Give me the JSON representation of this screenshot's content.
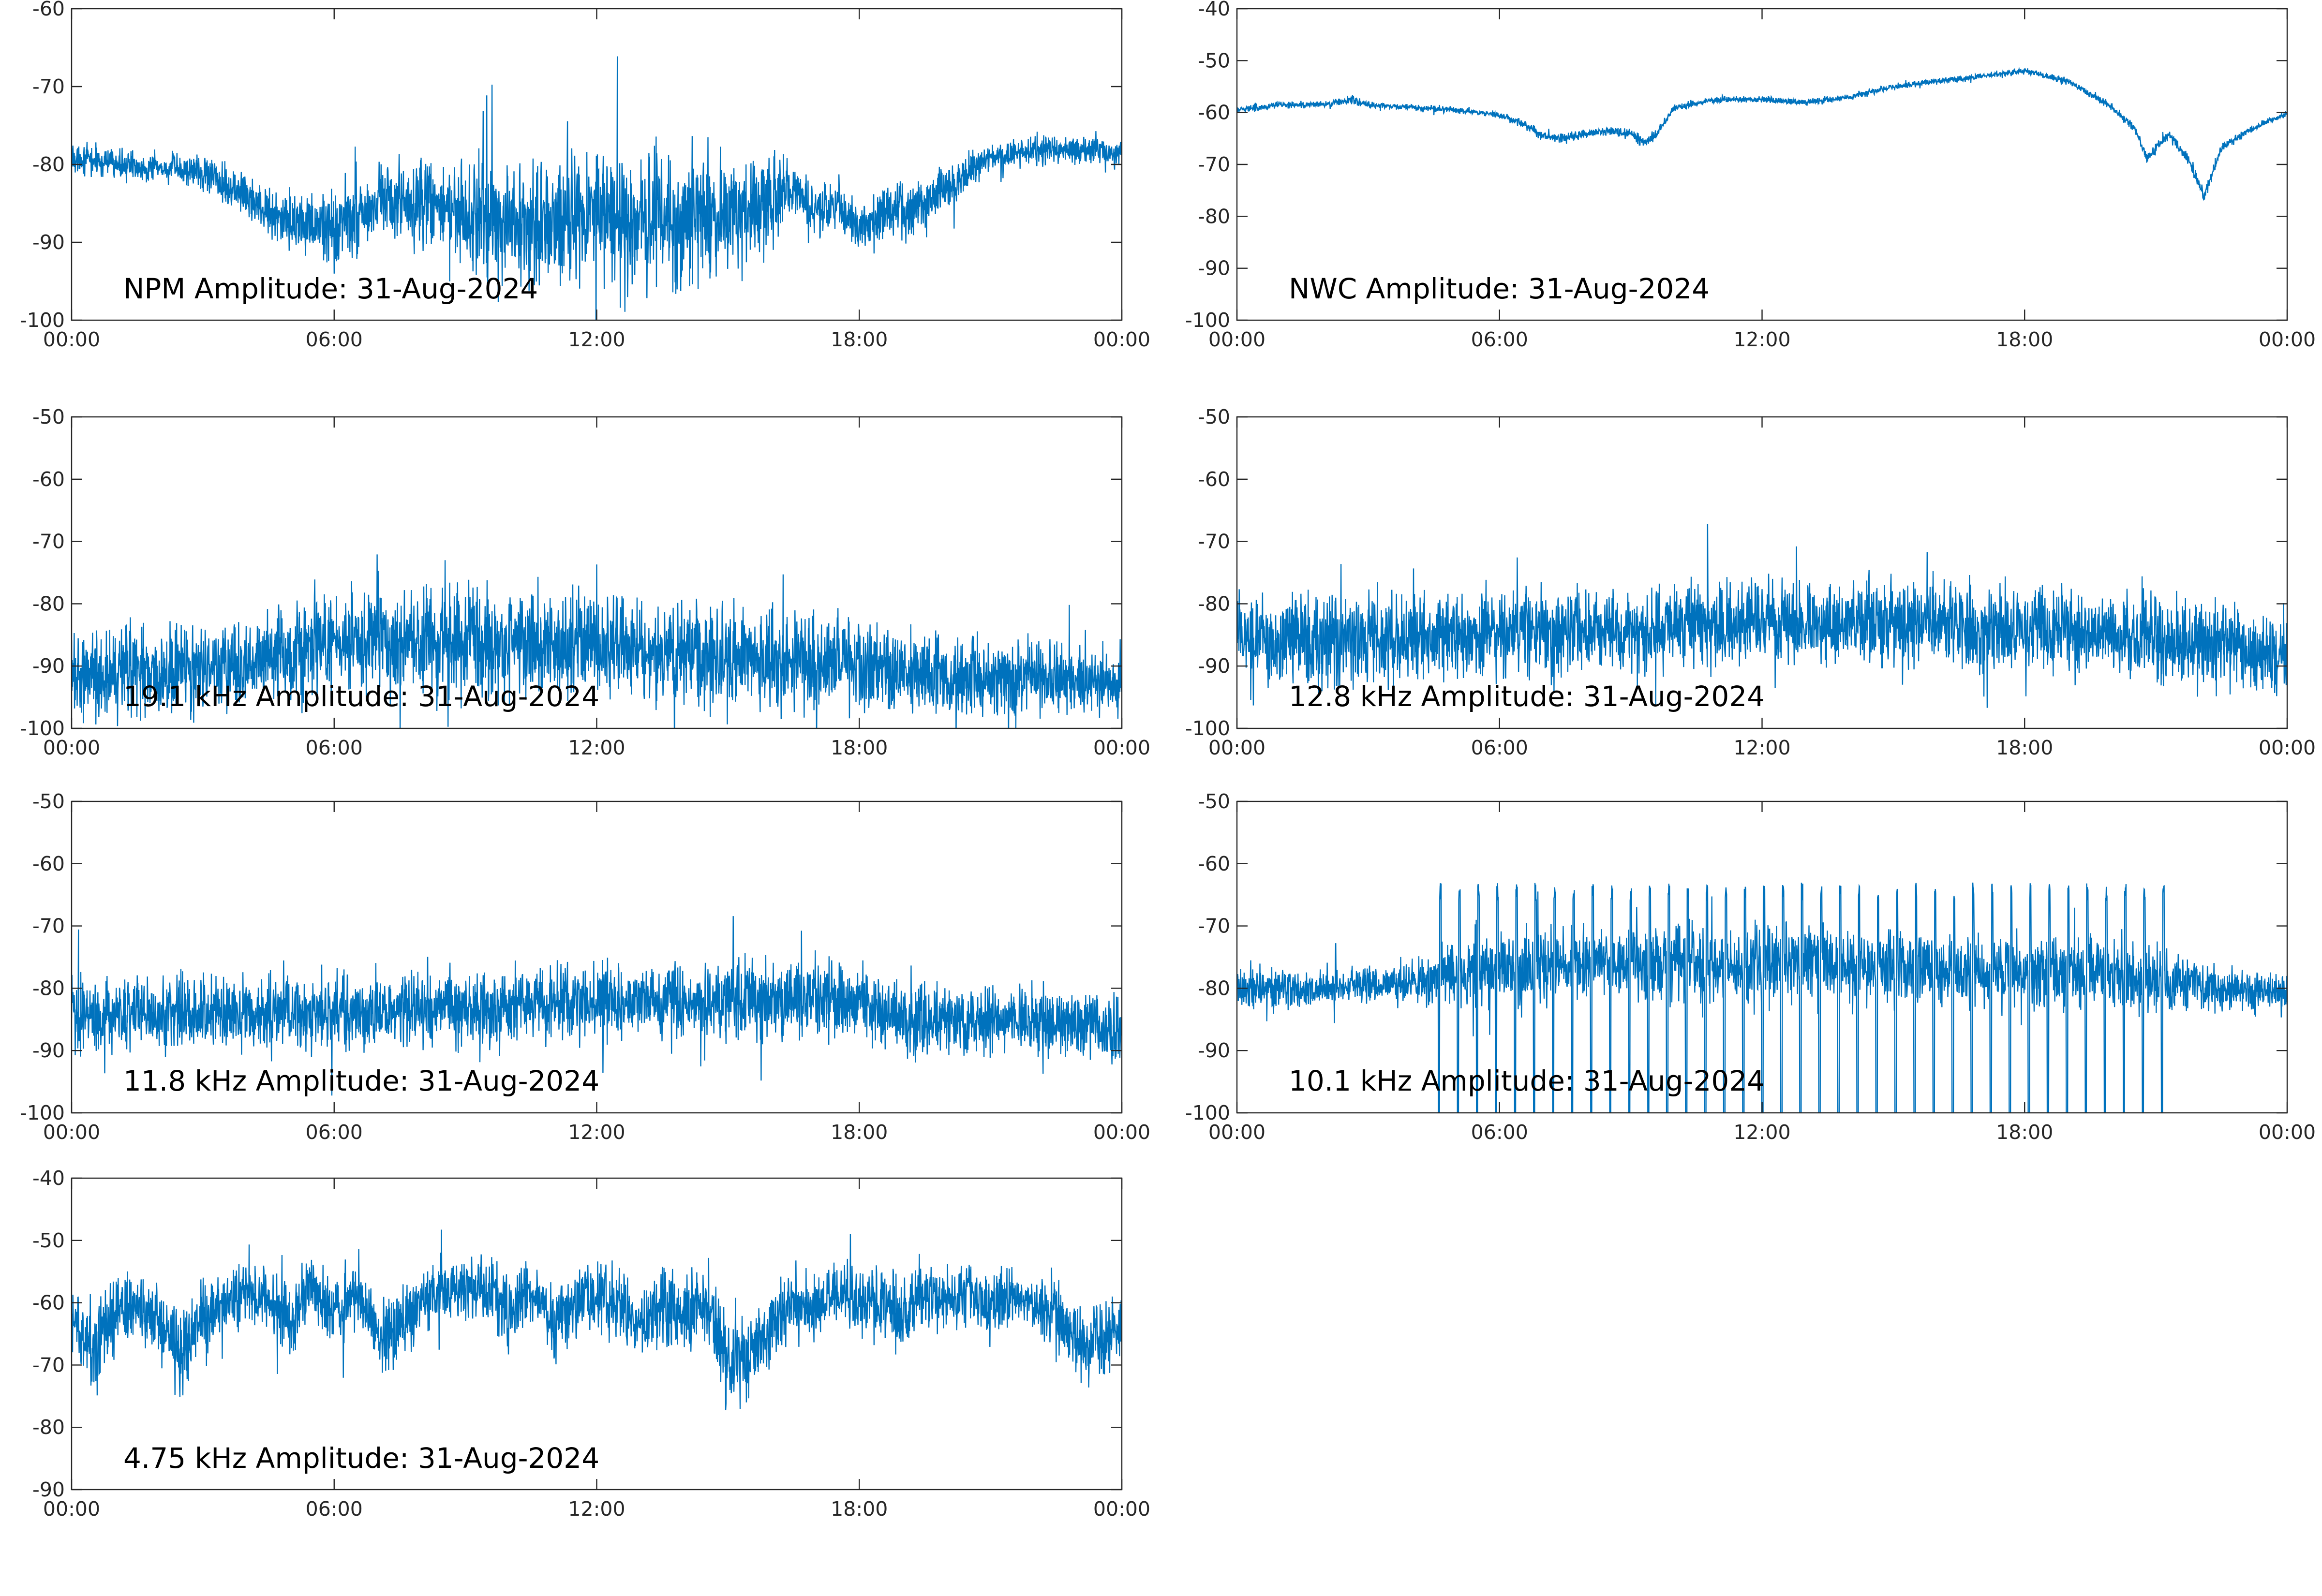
{
  "figure": {
    "trace_color": "#0072BD",
    "axis_color": "#262626"
  },
  "chart_data": [
    {
      "type": "line",
      "label": "NPM Amplitude: 31-Aug-2024",
      "ylim": [
        -100,
        -60
      ],
      "yticks": [
        "-60",
        "-70",
        "-80",
        "-90",
        "-100"
      ],
      "xlim": [
        "00:00",
        "24:00"
      ],
      "xticks": [
        "00:00",
        "06:00",
        "12:00",
        "18:00",
        "00:00"
      ],
      "grid": false,
      "series": [
        {
          "x_hours": [
            0,
            1,
            2,
            3,
            4,
            5,
            6,
            7,
            8,
            9,
            10,
            11,
            12,
            13,
            14,
            15,
            16,
            16.5,
            17,
            17.5,
            18,
            18.5,
            19,
            20,
            21,
            22,
            23,
            24
          ],
          "center": [
            -79,
            -80,
            -80.5,
            -81,
            -84,
            -88,
            -88,
            -85,
            -85,
            -86,
            -88,
            -88,
            -87,
            -87,
            -87,
            -87,
            -85,
            -83,
            -86,
            -85,
            -88,
            -86,
            -86,
            -83,
            -79,
            -78,
            -78,
            -79
          ],
          "spread": [
            1.5,
            1.5,
            1.5,
            2,
            2.5,
            3,
            4,
            4.5,
            4.5,
            5,
            6,
            7,
            7,
            7,
            7,
            6,
            5,
            3,
            2.5,
            3,
            3,
            3,
            3,
            2.5,
            1.5,
            1.5,
            1.5,
            1.5
          ]
        }
      ]
    },
    {
      "type": "line",
      "label": "NWC Amplitude: 31-Aug-2024",
      "ylim": [
        -100,
        -40
      ],
      "yticks": [
        "-40",
        "-50",
        "-60",
        "-70",
        "-80",
        "-90",
        "-100"
      ],
      "xlim": [
        "00:00",
        "24:00"
      ],
      "xticks": [
        "00:00",
        "06:00",
        "12:00",
        "18:00",
        "00:00"
      ],
      "grid": false,
      "series": [
        {
          "x_hours": [
            0,
            1,
            2,
            2.6,
            3,
            4,
            5,
            6,
            6.5,
            7,
            7.5,
            8,
            8.5,
            9,
            9.3,
            9.6,
            10,
            11,
            12,
            13,
            14,
            15,
            16,
            17,
            18,
            19,
            20,
            20.5,
            20.8,
            21.3,
            21.8,
            22.1,
            22.5,
            23,
            24
          ],
          "center": [
            -59.5,
            -58.5,
            -58.5,
            -57.5,
            -58.5,
            -59,
            -59.5,
            -60.5,
            -62,
            -64.5,
            -65,
            -64,
            -63.5,
            -64,
            -66,
            -64,
            -59,
            -57.5,
            -57.5,
            -58,
            -57,
            -55,
            -54,
            -53,
            -52,
            -54,
            -59,
            -63,
            -69,
            -64,
            -70,
            -76,
            -67,
            -64,
            -60
          ],
          "spread": [
            0.5,
            0.5,
            0.5,
            0.8,
            0.5,
            0.5,
            0.5,
            0.5,
            0.6,
            0.8,
            0.8,
            0.8,
            0.8,
            0.8,
            1,
            0.8,
            0.6,
            0.5,
            0.5,
            0.5,
            0.5,
            0.5,
            0.5,
            0.5,
            0.5,
            0.5,
            0.6,
            0.8,
            1,
            0.8,
            1,
            1.2,
            0.8,
            0.6,
            0.5
          ]
        }
      ]
    },
    {
      "type": "line",
      "label": "19.1 kHz Amplitude: 31-Aug-2024",
      "ylim": [
        -100,
        -50
      ],
      "yticks": [
        "-50",
        "-60",
        "-70",
        "-80",
        "-90",
        "-100"
      ],
      "xlim": [
        "00:00",
        "24:00"
      ],
      "xticks": [
        "00:00",
        "06:00",
        "12:00",
        "18:00",
        "00:00"
      ],
      "grid": false,
      "series": [
        {
          "x_hours": [
            0,
            2,
            4,
            5,
            6,
            8,
            10,
            12,
            14,
            16,
            18,
            20,
            22,
            24
          ],
          "center": [
            -91,
            -91,
            -90,
            -88,
            -86,
            -86,
            -86,
            -87,
            -88,
            -89,
            -90,
            -92,
            -92,
            -93
          ],
          "spread": [
            6,
            6,
            6,
            6.5,
            7,
            7,
            7,
            7,
            7,
            6.5,
            5.5,
            5,
            5,
            5
          ]
        }
      ]
    },
    {
      "type": "line",
      "label": "12.8 kHz Amplitude: 31-Aug-2024",
      "ylim": [
        -100,
        -50
      ],
      "yticks": [
        "-50",
        "-60",
        "-70",
        "-80",
        "-90",
        "-100"
      ],
      "xlim": [
        "00:00",
        "24:00"
      ],
      "xticks": [
        "00:00",
        "06:00",
        "12:00",
        "18:00",
        "00:00"
      ],
      "grid": false,
      "series": [
        {
          "x_hours": [
            0,
            2,
            4,
            6,
            8,
            10,
            12,
            14,
            16,
            18,
            20,
            22,
            24
          ],
          "center": [
            -85,
            -86,
            -86,
            -85,
            -84,
            -84,
            -83,
            -83,
            -83,
            -84,
            -85,
            -87,
            -88
          ],
          "spread": [
            6,
            6,
            6,
            5.5,
            5.5,
            5.5,
            5.5,
            5.5,
            5.5,
            5.5,
            5.5,
            5.5,
            5.5
          ]
        }
      ]
    },
    {
      "type": "line",
      "label": "11.8 kHz Amplitude: 31-Aug-2024",
      "ylim": [
        -100,
        -50
      ],
      "yticks": [
        "-50",
        "-60",
        "-70",
        "-80",
        "-90",
        "-100"
      ],
      "xlim": [
        "00:00",
        "24:00"
      ],
      "xticks": [
        "00:00",
        "06:00",
        "12:00",
        "18:00",
        "00:00"
      ],
      "grid": false,
      "series": [
        {
          "x_hours": [
            0,
            2,
            4,
            6,
            8,
            10,
            12,
            14,
            16,
            18,
            19,
            20,
            22,
            24
          ],
          "center": [
            -84,
            -84,
            -84,
            -84,
            -83,
            -83,
            -82,
            -82,
            -82,
            -82,
            -85,
            -85,
            -85,
            -87
          ],
          "spread": [
            5,
            5,
            5,
            5,
            5,
            5,
            5,
            5,
            5,
            5,
            4.5,
            4.5,
            4.5,
            4.5
          ]
        }
      ]
    },
    {
      "type": "line",
      "label": "10.1 kHz Amplitude: 31-Aug-2024",
      "ylim": [
        -100,
        -50
      ],
      "yticks": [
        "-50",
        "-60",
        "-70",
        "-80",
        "-90",
        "-100"
      ],
      "xlim": [
        "00:00",
        "24:00"
      ],
      "xticks": [
        "00:00",
        "06:00",
        "12:00",
        "18:00",
        "00:00"
      ],
      "grid": false,
      "series": [
        {
          "x_hours": [
            0,
            2,
            4,
            4.7,
            6,
            8,
            10,
            12,
            14,
            16,
            18,
            20,
            21.5,
            22,
            24
          ],
          "center": [
            -80,
            -80,
            -79,
            -78,
            -77,
            -76,
            -76,
            -76,
            -76,
            -77,
            -77,
            -78,
            -79,
            -80,
            -81
          ],
          "spread": [
            2.5,
            2.5,
            2.5,
            4,
            5,
            5,
            5,
            5,
            5,
            5,
            5,
            5,
            4,
            3,
            2.5
          ],
          "burst_hours": [
            4.6,
            21.4
          ]
        }
      ]
    },
    {
      "type": "line",
      "label": "4.75 kHz Amplitude: 31-Aug-2024",
      "ylim": [
        -90,
        -40
      ],
      "yticks": [
        "-40",
        "-50",
        "-60",
        "-70",
        "-80",
        "-90"
      ],
      "xlim": [
        "00:00",
        "24:00"
      ],
      "xticks": [
        "00:00",
        "06:00",
        "12:00",
        "18:00",
        "00:00"
      ],
      "grid": false,
      "series": [
        {
          "x_hours": [
            0,
            0.5,
            1,
            1.5,
            2,
            2.5,
            3,
            3.5,
            4,
            4.5,
            5,
            5.5,
            6,
            6.5,
            7,
            7.5,
            8,
            8.5,
            9,
            9.5,
            10,
            10.5,
            11,
            11.5,
            12,
            12.5,
            13,
            13.5,
            14,
            14.5,
            15,
            15.5,
            16,
            16.5,
            17,
            17.5,
            18,
            18.5,
            19,
            19.5,
            20,
            20.5,
            21,
            21.5,
            22,
            22.5,
            23,
            23.5,
            24
          ],
          "center": [
            -63,
            -67,
            -62,
            -60,
            -63,
            -68,
            -62,
            -60,
            -58,
            -60,
            -63,
            -58,
            -62,
            -58,
            -65,
            -64,
            -60,
            -58,
            -58,
            -57,
            -62,
            -58,
            -64,
            -60,
            -59,
            -60,
            -64,
            -60,
            -62,
            -60,
            -70,
            -68,
            -64,
            -60,
            -61,
            -58,
            -60,
            -60,
            -62,
            -58,
            -60,
            -58,
            -61,
            -58,
            -60,
            -62,
            -66,
            -67,
            -64
          ],
          "spread": [
            4,
            5,
            5,
            4,
            5,
            6,
            5,
            4,
            4,
            4,
            5,
            4,
            5,
            4,
            5,
            5,
            4,
            4,
            4,
            4,
            5,
            4,
            5,
            5,
            4,
            4,
            5,
            5,
            5,
            5,
            6,
            6,
            5,
            4,
            5,
            4,
            5,
            5,
            5,
            4,
            4,
            4,
            5,
            4,
            4,
            5,
            5,
            5,
            5
          ]
        }
      ]
    }
  ]
}
